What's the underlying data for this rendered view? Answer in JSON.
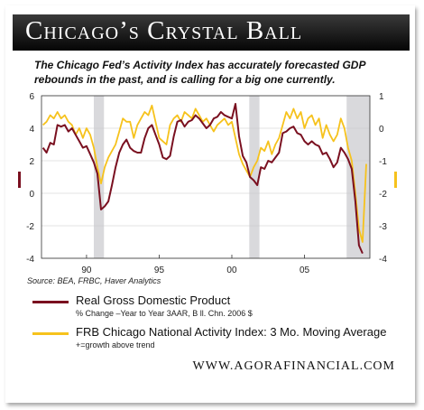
{
  "header": {
    "title": "Chicago’s Crystal Ball"
  },
  "subtitle": "The Chicago Fed’s Activity Index has accurately forecasted GDP rebounds in the past, and is calling for a big one currently.",
  "source": "Source: BEA, FRBC, Haver Analytics",
  "legend": {
    "gdp_label": "Real Gross Domestic Product",
    "gdp_sub": "% Change –Year to Year 3AAR, B ll. Chn. 2006 $",
    "cfnai_label": "FRB Chicago National Activity Index: 3 Mo. Moving Average",
    "cfnai_sub": "+=growth above trend"
  },
  "website": "WWW.AGORAFINANCIAL.COM",
  "colors": {
    "gdp": "#7a1020",
    "cfnai": "#f6c21c",
    "recession": "#d9d9dc"
  },
  "chart_data": {
    "type": "line",
    "x_tick_labels": [
      "90",
      "95",
      "00",
      "05"
    ],
    "x_ticks": [
      1990,
      1995,
      2000,
      2005
    ],
    "xlim": [
      1986.9,
      2009.5
    ],
    "left_axis": {
      "ylim": [
        -4,
        6
      ],
      "ticks": [
        "6",
        "4",
        "2",
        "0",
        "-2",
        "-4"
      ],
      "tick_values": [
        6,
        4,
        2,
        0,
        -2,
        -4
      ]
    },
    "right_axis": {
      "ylim": [
        -4,
        1
      ],
      "ticks": [
        "1",
        "0",
        "-1",
        "-2",
        "-3",
        "-4"
      ],
      "tick_values": [
        1,
        0,
        -1,
        -2,
        -3,
        -4
      ]
    },
    "recessions": [
      [
        1990.5,
        1991.2
      ],
      [
        2001.2,
        2001.9
      ],
      [
        2007.9,
        2009.5
      ]
    ],
    "series": [
      {
        "name": "Real Gross Domestic Product",
        "axis": "left",
        "x": [
          1987.0,
          1987.25,
          1987.5,
          1987.75,
          1988.0,
          1988.25,
          1988.5,
          1988.75,
          1989.0,
          1989.25,
          1989.5,
          1989.75,
          1990.0,
          1990.25,
          1990.5,
          1990.75,
          1991.0,
          1991.25,
          1991.5,
          1991.75,
          1992.0,
          1992.25,
          1992.5,
          1992.75,
          1993.0,
          1993.25,
          1993.5,
          1993.75,
          1994.0,
          1994.25,
          1994.5,
          1994.75,
          1995.0,
          1995.25,
          1995.5,
          1995.75,
          1996.0,
          1996.25,
          1996.5,
          1996.75,
          1997.0,
          1997.25,
          1997.5,
          1997.75,
          1998.0,
          1998.25,
          1998.5,
          1998.75,
          1999.0,
          1999.25,
          1999.5,
          1999.75,
          2000.0,
          2000.25,
          2000.5,
          2000.75,
          2001.0,
          2001.25,
          2001.5,
          2001.75,
          2002.0,
          2002.25,
          2002.5,
          2002.75,
          2003.0,
          2003.25,
          2003.5,
          2003.75,
          2004.0,
          2004.25,
          2004.5,
          2004.75,
          2005.0,
          2005.25,
          2005.5,
          2005.75,
          2006.0,
          2006.25,
          2006.5,
          2006.75,
          2007.0,
          2007.25,
          2007.5,
          2007.75,
          2008.0,
          2008.25,
          2008.5,
          2008.75,
          2009.0
        ],
        "values": [
          2.8,
          2.5,
          3.1,
          3.0,
          4.2,
          4.1,
          4.2,
          3.8,
          4.0,
          3.6,
          3.2,
          2.8,
          2.9,
          2.4,
          1.9,
          1.2,
          -1.0,
          -0.8,
          -0.5,
          0.5,
          1.6,
          2.5,
          3.0,
          3.3,
          2.8,
          2.6,
          2.5,
          2.5,
          3.4,
          4.0,
          4.2,
          3.6,
          3.0,
          2.2,
          2.1,
          2.3,
          3.5,
          4.4,
          4.5,
          4.1,
          4.4,
          4.5,
          4.8,
          4.6,
          4.3,
          4.0,
          4.2,
          4.6,
          4.7,
          5.0,
          4.8,
          4.7,
          4.6,
          5.5,
          3.5,
          2.3,
          1.9,
          1.0,
          0.8,
          0.5,
          1.6,
          1.5,
          2.0,
          1.9,
          2.2,
          2.5,
          3.7,
          3.8,
          4.0,
          4.1,
          3.7,
          3.6,
          3.2,
          3.0,
          3.2,
          3.0,
          2.9,
          2.4,
          2.5,
          2.1,
          1.6,
          1.9,
          2.8,
          2.5,
          2.1,
          1.5,
          -0.5,
          -3.2,
          -3.7
        ]
      },
      {
        "name": "FRB Chicago National Activity Index: 3 Mo. Moving Average",
        "axis": "right",
        "x": [
          1987.0,
          1987.25,
          1987.5,
          1987.75,
          1988.0,
          1988.25,
          1988.5,
          1988.75,
          1989.0,
          1989.25,
          1989.5,
          1989.75,
          1990.0,
          1990.25,
          1990.5,
          1990.75,
          1991.0,
          1991.25,
          1991.5,
          1991.75,
          1992.0,
          1992.25,
          1992.5,
          1992.75,
          1993.0,
          1993.25,
          1993.5,
          1993.75,
          1994.0,
          1994.25,
          1994.5,
          1994.75,
          1995.0,
          1995.25,
          1995.5,
          1995.75,
          1996.0,
          1996.25,
          1996.5,
          1996.75,
          1997.0,
          1997.25,
          1997.5,
          1997.75,
          1998.0,
          1998.25,
          1998.5,
          1998.75,
          1999.0,
          1999.25,
          1999.5,
          1999.75,
          2000.0,
          2000.25,
          2000.5,
          2000.75,
          2001.0,
          2001.25,
          2001.5,
          2001.75,
          2002.0,
          2002.25,
          2002.5,
          2002.75,
          2003.0,
          2003.25,
          2003.5,
          2003.75,
          2004.0,
          2004.25,
          2004.5,
          2004.75,
          2005.0,
          2005.25,
          2005.5,
          2005.75,
          2006.0,
          2006.25,
          2006.5,
          2006.75,
          2007.0,
          2007.25,
          2007.5,
          2007.75,
          2008.0,
          2008.25,
          2008.5,
          2008.75,
          2009.0,
          2009.25
        ],
        "values": [
          0.1,
          0.2,
          0.4,
          0.3,
          0.5,
          0.3,
          0.4,
          0.2,
          0.1,
          -0.2,
          0.0,
          -0.3,
          0.0,
          -0.2,
          -0.6,
          -1.2,
          -1.7,
          -1.2,
          -0.9,
          -0.7,
          -0.5,
          -0.1,
          0.3,
          0.2,
          0.2,
          -0.3,
          0.1,
          0.3,
          0.5,
          0.4,
          0.7,
          0.2,
          -0.3,
          -0.4,
          -0.5,
          0.1,
          0.3,
          0.4,
          0.2,
          0.5,
          0.4,
          0.3,
          0.6,
          0.4,
          0.2,
          0.3,
          0.1,
          -0.1,
          0.1,
          0.2,
          0.3,
          0.1,
          0.2,
          -0.3,
          -0.8,
          -1.1,
          -1.3,
          -1.5,
          -1.2,
          -1.0,
          -0.6,
          -0.7,
          -0.4,
          -0.8,
          -0.5,
          -0.3,
          0.1,
          0.5,
          0.3,
          0.6,
          0.3,
          0.5,
          0.0,
          0.3,
          0.4,
          0.1,
          0.3,
          -0.3,
          0.1,
          -0.2,
          -0.4,
          -0.2,
          0.3,
          0.0,
          -0.6,
          -1.0,
          -2.0,
          -3.1,
          -3.5,
          -1.1
        ]
      }
    ],
    "grid": "horizontal",
    "legend_position": "below"
  }
}
